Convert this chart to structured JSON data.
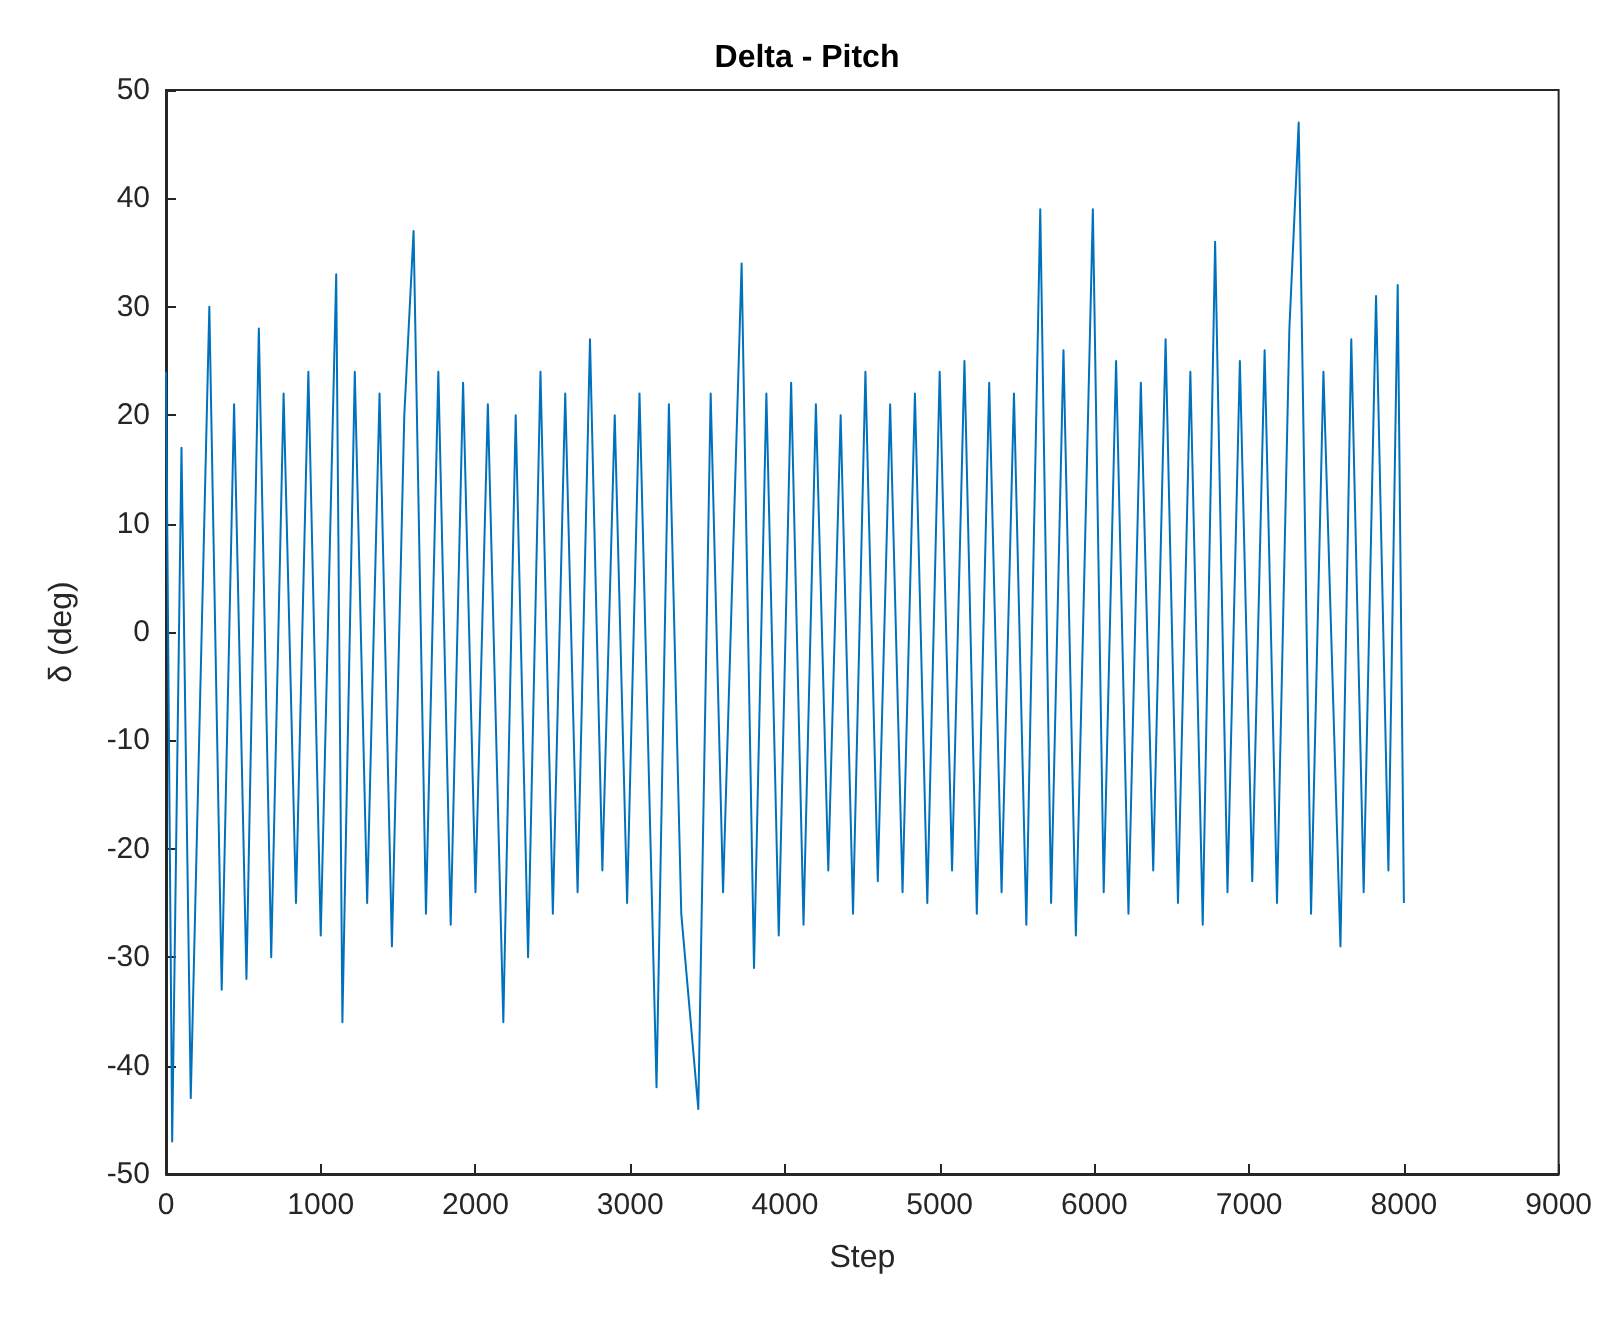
{
  "chart_data": {
    "type": "line",
    "title": "Delta - Pitch",
    "xlabel": "Step",
    "ylabel": "δ (deg)",
    "x": [
      0,
      40,
      100,
      160,
      280,
      360,
      440,
      520,
      600,
      680,
      760,
      840,
      920,
      1000,
      1100,
      1140,
      1220,
      1300,
      1380,
      1460,
      1540,
      1600,
      1680,
      1760,
      1840,
      1920,
      2000,
      2080,
      2180,
      2260,
      2340,
      2420,
      2500,
      2580,
      2660,
      2740,
      2820,
      2900,
      2980,
      3060,
      3170,
      3250,
      3330,
      3440,
      3520,
      3600,
      3720,
      3800,
      3880,
      3960,
      4040,
      4120,
      4200,
      4280,
      4360,
      4440,
      4520,
      4600,
      4680,
      4760,
      4840,
      4920,
      5000,
      5080,
      5160,
      5240,
      5320,
      5400,
      5480,
      5560,
      5650,
      5720,
      5800,
      5880,
      5990,
      6060,
      6140,
      6220,
      6300,
      6380,
      6460,
      6540,
      6620,
      6700,
      6780,
      6860,
      6940,
      7020,
      7100,
      7180,
      7260,
      7320,
      7400,
      7480,
      7590,
      7660,
      7740,
      7820,
      7900,
      7960,
      8000
    ],
    "series": [
      {
        "color": "#0072bd",
        "values": [
          24,
          -47,
          17,
          -43,
          30,
          -33,
          21,
          -32,
          28,
          -30,
          22,
          -25,
          24,
          -28,
          33,
          -36,
          24,
          -25,
          22,
          -29,
          20,
          37,
          -26,
          24,
          -27,
          23,
          -24,
          21,
          -36,
          20,
          -30,
          24,
          -26,
          22,
          -24,
          27,
          -22,
          20,
          -25,
          22,
          -42,
          21,
          -26,
          -44,
          22,
          -24,
          34,
          -31,
          22,
          -28,
          23,
          -27,
          21,
          -22,
          20,
          -26,
          24,
          -23,
          21,
          -24,
          22,
          -25,
          24,
          -22,
          25,
          -26,
          23,
          -24,
          22,
          -27,
          39,
          -25,
          26,
          -28,
          39,
          -24,
          25,
          -26,
          23,
          -22,
          27,
          -25,
          24,
          -27,
          36,
          -24,
          25,
          -23,
          26,
          -25,
          28,
          47,
          -26,
          24,
          -29,
          27,
          -24,
          31,
          -22,
          32,
          -25
        ]
      }
    ],
    "xlim": [
      0,
      9000
    ],
    "xticks": [
      0,
      1000,
      2000,
      3000,
      4000,
      5000,
      6000,
      7000,
      8000,
      9000
    ],
    "ylim": [
      -50,
      50
    ],
    "yticks": [
      -50,
      -40,
      -30,
      -20,
      -10,
      0,
      10,
      20,
      30,
      40,
      50
    ],
    "grid": false,
    "marker": "none",
    "line_style": "solid"
  }
}
